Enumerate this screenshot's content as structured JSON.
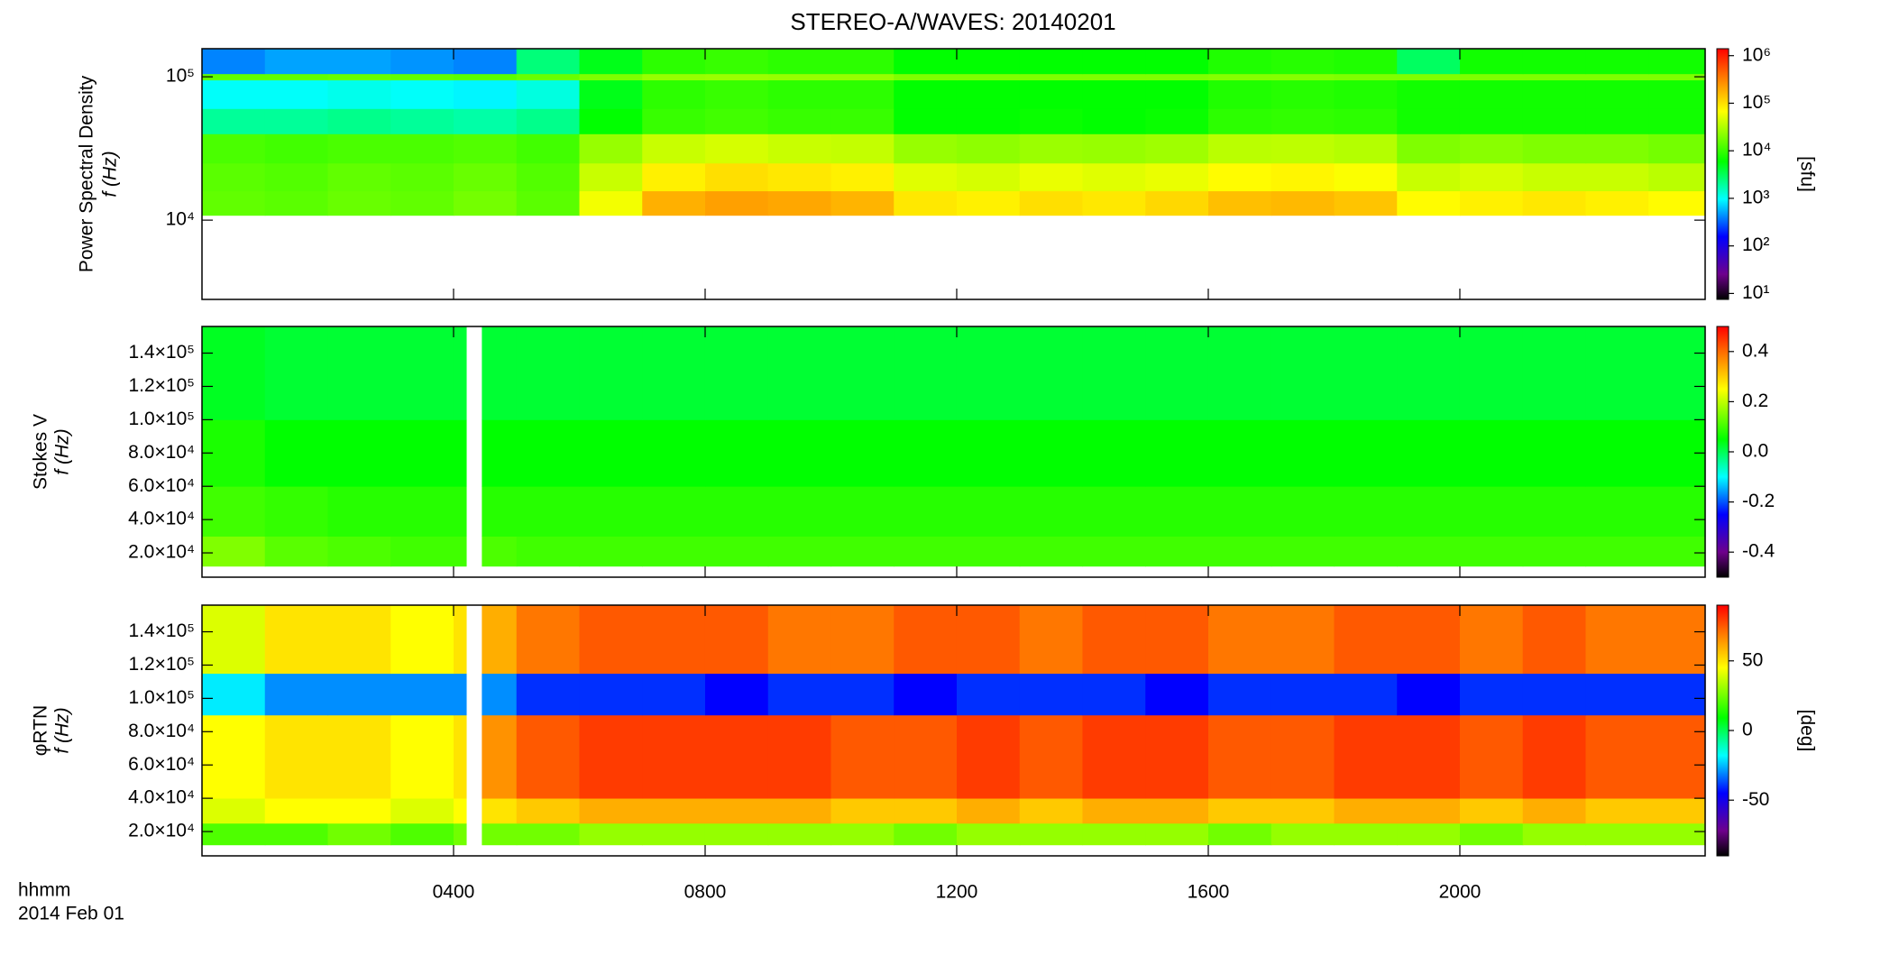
{
  "chart_data": [
    {
      "type": "heatmap",
      "title": "STEREO-A/WAVES: 20140201",
      "colormap": "rainbow",
      "ylabel": [
        "Power Spectral Density",
        "f (Hz)"
      ],
      "ylog": true,
      "ylim": [
        2800,
        157000
      ],
      "yticks": [
        {
          "value": 10000,
          "label": "10⁴"
        },
        {
          "value": 100000,
          "label": "10⁵"
        }
      ],
      "xbins": [
        0,
        1,
        2,
        3,
        4,
        5,
        6,
        7,
        8,
        9,
        10,
        11,
        12,
        13,
        14,
        15,
        16,
        17,
        18,
        19,
        20,
        21,
        22,
        23,
        23.9
      ],
      "ybins": [
        10800,
        16000,
        25000,
        40000,
        60000,
        95000,
        105000,
        157000
      ],
      "values": [
        [
          15000,
          14000,
          16000,
          15000,
          18000,
          14000,
          60000,
          180000,
          220000,
          200000,
          170000,
          90000,
          80000,
          100000,
          90000,
          110000,
          150000,
          160000,
          140000,
          70000,
          80000,
          90000,
          80000,
          70000
        ],
        [
          14000,
          13000,
          15000,
          14000,
          16000,
          13000,
          40000,
          80000,
          100000,
          90000,
          80000,
          50000,
          45000,
          55000,
          50000,
          55000,
          70000,
          75000,
          65000,
          40000,
          45000,
          40000,
          40000,
          35000
        ],
        [
          12000,
          11000,
          12000,
          12000,
          13000,
          11000,
          25000,
          40000,
          45000,
          40000,
          38000,
          25000,
          23000,
          26000,
          25000,
          27000,
          35000,
          36000,
          33000,
          20000,
          22000,
          20000,
          20000,
          18000
        ],
        [
          2000,
          2000,
          2200,
          2000,
          1800,
          2200,
          6000,
          10000,
          11000,
          10000,
          10000,
          6000,
          6000,
          6500,
          6000,
          6500,
          9000,
          9500,
          9000,
          7000,
          7000,
          7000,
          7000,
          7000
        ],
        [
          1000,
          1000,
          1100,
          1000,
          900,
          1200,
          5000,
          9000,
          10000,
          9000,
          9000,
          6000,
          6000,
          6000,
          6000,
          6000,
          8000,
          8500,
          8000,
          7000,
          7000,
          7000,
          7000,
          7000
        ],
        [
          15000,
          15000,
          16000,
          15000,
          14000,
          16000,
          20000,
          25000,
          26000,
          25000,
          25000,
          20000,
          20000,
          20000,
          20000,
          20000,
          21000,
          21000,
          20000,
          20000,
          20000,
          20000,
          20000,
          20000
        ],
        [
          400,
          500,
          500,
          450,
          400,
          2500,
          5000,
          9000,
          10000,
          9000,
          9000,
          6000,
          6000,
          6000,
          6000,
          6000,
          8000,
          8500,
          8000,
          3000,
          7000,
          7000,
          7000,
          7000
        ]
      ],
      "clog": true,
      "clim": [
        7.5,
        1400000
      ],
      "cunit": "[sfu]",
      "cticks": [
        {
          "value": 10,
          "label": "10¹"
        },
        {
          "value": 100,
          "label": "10²"
        },
        {
          "value": 1000,
          "label": "10³"
        },
        {
          "value": 10000,
          "label": "10⁴"
        },
        {
          "value": 100000,
          "label": "10⁵"
        },
        {
          "value": 1000000,
          "label": "10⁶"
        }
      ]
    },
    {
      "type": "heatmap",
      "colormap": "rainbow",
      "ylabel": [
        "Stokes V",
        "f (Hz)"
      ],
      "ylog": false,
      "ylim": [
        5400,
        156000
      ],
      "yticks": [
        {
          "value": 20000,
          "label": "2.0×10⁴"
        },
        {
          "value": 40000,
          "label": "4.0×10⁴"
        },
        {
          "value": 60000,
          "label": "6.0×10⁴"
        },
        {
          "value": 80000,
          "label": "8.0×10⁴"
        },
        {
          "value": 100000,
          "label": "1.0×10⁵"
        },
        {
          "value": 120000,
          "label": "1.2×10⁵"
        },
        {
          "value": 140000,
          "label": "1.4×10⁵"
        }
      ],
      "xbins": [
        0,
        1,
        2,
        3,
        4,
        4.2,
        4.45,
        5,
        6,
        7,
        8,
        9,
        10,
        11,
        12,
        13,
        14,
        15,
        16,
        17,
        18,
        19,
        20,
        21,
        22,
        23.9
      ],
      "ybins": [
        12000,
        30000,
        60000,
        100000,
        156000
      ],
      "values": [
        [
          0.15,
          0.12,
          0.11,
          0.1,
          0.1,
          null,
          0.11,
          0.1,
          0.1,
          0.1,
          0.1,
          0.1,
          0.1,
          0.1,
          0.1,
          0.1,
          0.1,
          0.1,
          0.1,
          0.1,
          0.1,
          0.1,
          0.1,
          0.1,
          0.1
        ],
        [
          0.1,
          0.09,
          0.08,
          0.08,
          0.08,
          null,
          0.08,
          0.08,
          0.08,
          0.08,
          0.08,
          0.08,
          0.08,
          0.08,
          0.08,
          0.08,
          0.08,
          0.08,
          0.08,
          0.08,
          0.08,
          0.08,
          0.08,
          0.08,
          0.08
        ],
        [
          0.07,
          0.05,
          0.05,
          0.05,
          0.05,
          null,
          0.05,
          0.05,
          0.05,
          0.05,
          0.05,
          0.05,
          0.05,
          0.05,
          0.05,
          0.05,
          0.05,
          0.05,
          0.05,
          0.05,
          0.05,
          0.05,
          0.05,
          0.05,
          0.05
        ],
        [
          0.03,
          0.02,
          0.02,
          0.02,
          0.02,
          null,
          0.02,
          0.02,
          0.02,
          0.02,
          0.02,
          0.02,
          0.02,
          0.02,
          0.02,
          0.02,
          0.02,
          0.02,
          0.02,
          0.02,
          0.02,
          0.02,
          0.02,
          0.02,
          0.02
        ]
      ],
      "clog": false,
      "clim": [
        -0.5,
        0.5
      ],
      "cticks": [
        -0.4,
        -0.2,
        {
          "value": 0,
          "label": "0.0"
        },
        0.2,
        0.4
      ]
    },
    {
      "type": "heatmap",
      "colormap": "rainbow",
      "ylabel": [
        "φRTN",
        "f (Hz)"
      ],
      "ylog": false,
      "ylim": [
        5400,
        156000
      ],
      "yticks": [
        {
          "value": 20000,
          "label": "2.0×10⁴"
        },
        {
          "value": 40000,
          "label": "4.0×10⁴"
        },
        {
          "value": 60000,
          "label": "6.0×10⁴"
        },
        {
          "value": 80000,
          "label": "8.0×10⁴"
        },
        {
          "value": 100000,
          "label": "1.0×10⁵"
        },
        {
          "value": 120000,
          "label": "1.2×10⁵"
        },
        {
          "value": 140000,
          "label": "1.4×10⁵"
        }
      ],
      "xbins": [
        0,
        1,
        2,
        3,
        4,
        4.2,
        4.45,
        5,
        6,
        7,
        8,
        9,
        10,
        11,
        12,
        13,
        14,
        15,
        16,
        17,
        18,
        19,
        20,
        21,
        22,
        23.9
      ],
      "ybins": [
        12000,
        25000,
        40000,
        90000,
        115000,
        156000
      ],
      "values": [
        [
          20,
          20,
          25,
          20,
          25,
          null,
          25,
          25,
          30,
          30,
          30,
          30,
          30,
          25,
          30,
          30,
          30,
          30,
          25,
          30,
          30,
          30,
          25,
          30,
          30
        ],
        [
          40,
          45,
          45,
          40,
          45,
          null,
          50,
          55,
          60,
          60,
          60,
          60,
          55,
          55,
          60,
          55,
          60,
          60,
          55,
          55,
          60,
          60,
          55,
          60,
          55
        ],
        [
          45,
          50,
          50,
          45,
          50,
          null,
          65,
          75,
          80,
          80,
          80,
          80,
          75,
          75,
          80,
          75,
          80,
          80,
          75,
          75,
          80,
          80,
          75,
          80,
          75
        ],
        [
          -20,
          -30,
          -30,
          -30,
          -30,
          null,
          -30,
          -40,
          -40,
          -40,
          -45,
          -40,
          -40,
          -45,
          -40,
          -40,
          -40,
          -45,
          -40,
          -40,
          -40,
          -45,
          -40,
          -40,
          -40
        ],
        [
          40,
          50,
          50,
          45,
          50,
          null,
          60,
          70,
          75,
          75,
          75,
          70,
          70,
          75,
          75,
          70,
          75,
          75,
          70,
          70,
          75,
          75,
          70,
          75,
          70
        ]
      ],
      "clog": false,
      "clim": [
        -90,
        90
      ],
      "cunit": "[deg]",
      "cticks": [
        -50,
        0,
        50
      ],
      "xlim": [
        0,
        23.9
      ],
      "xticks": [
        {
          "value": 4,
          "label": "0400"
        },
        {
          "value": 8,
          "label": "0800"
        },
        {
          "value": 12,
          "label": "1200"
        },
        {
          "value": 16,
          "label": "1600"
        },
        {
          "value": 20,
          "label": "2000"
        }
      ],
      "xlabel": [
        "hhmm",
        "2014 Feb 01"
      ]
    }
  ]
}
